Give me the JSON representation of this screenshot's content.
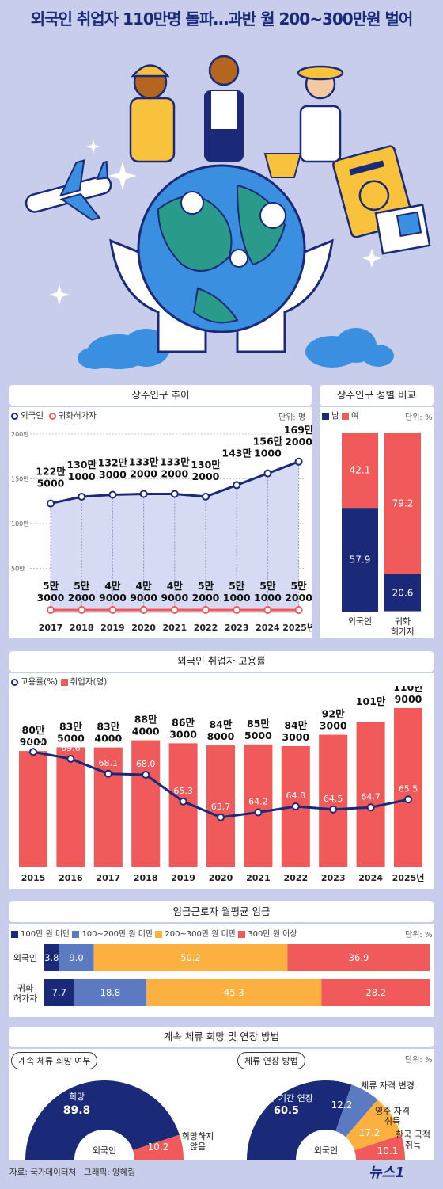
{
  "title": "외국인 취업자 110만명 돌파…과반 월 200~300만원 벌어",
  "footer": {
    "source": "자료: 국가데이터처   그래픽: 양혜림",
    "logo": "뉴스1"
  },
  "colors": {
    "navy": "#1a2a78",
    "red": "#f05a5a",
    "mid_blue": "#5b7ac2",
    "orange": "#fbb040",
    "bg": "#c8cdec"
  },
  "section1": {
    "title": "상주인구 추이",
    "unit": "단위: 명",
    "legend": [
      "외국인",
      "귀화허가자"
    ]
  },
  "section2": {
    "title": "상주인구 성별 비교",
    "unit": "단위: %",
    "legend": [
      "남",
      "여"
    ]
  },
  "section3": {
    "title": "외국인 취업자·고용률",
    "legend": [
      "고용률(%)",
      "취업자(명)"
    ]
  },
  "section4": {
    "title": "임금근로자 월평균 임금",
    "unit": "단위: %",
    "legend": [
      "100만 원 미만",
      "100~200만 원 미만",
      "200~300만 원 미만",
      "300만 원 이상"
    ]
  },
  "section5": {
    "title": "계속 체류 희망 및 연장 방법",
    "unit": "단위: %",
    "left_label": "계속 체류 희망 여부",
    "right_label": "체류 연장 방법"
  },
  "chart_data": [
    {
      "type": "line",
      "title": "상주인구 추이",
      "x": [
        "2017",
        "2018",
        "2019",
        "2020",
        "2021",
        "2022",
        "2023",
        "2024",
        "2025년"
      ],
      "y_ticks": [
        "200만",
        "150만",
        "100만",
        "50만"
      ],
      "ylim": [
        0,
        2000000
      ],
      "series": [
        {
          "name": "외국인",
          "values": [
            1225000,
            1301000,
            1323000,
            1332000,
            1332000,
            1302000,
            1430000,
            1561000,
            1692000
          ],
          "labels": [
            [
              "122만",
              "5000"
            ],
            [
              "130만",
              "1000"
            ],
            [
              "132만",
              "3000"
            ],
            [
              "133만",
              "2000"
            ],
            [
              "133만",
              "2000"
            ],
            [
              "130만",
              "2000"
            ],
            [
              "143만",
              ""
            ],
            [
              "156만",
              "1000"
            ],
            [
              "169만",
              "2000"
            ]
          ]
        },
        {
          "name": "귀화허가자",
          "values": [
            53000,
            52000,
            49000,
            49000,
            49000,
            52000,
            51000,
            51000,
            52000
          ],
          "labels": [
            [
              "5만",
              "3000"
            ],
            [
              "5만",
              "2000"
            ],
            [
              "4만",
              "9000"
            ],
            [
              "4만",
              "9000"
            ],
            [
              "4만",
              "9000"
            ],
            [
              "5만",
              "2000"
            ],
            [
              "5만",
              "1000"
            ],
            [
              "5만",
              "1000"
            ],
            [
              "5만",
              "2000"
            ]
          ]
        }
      ]
    },
    {
      "type": "bar",
      "title": "상주인구 성별 비교",
      "categories": [
        [
          "외국인"
        ],
        [
          "귀화",
          "허가자"
        ]
      ],
      "series": [
        {
          "name": "남",
          "values": [
            57.9,
            20.6
          ]
        },
        {
          "name": "여",
          "values": [
            42.1,
            79.2
          ]
        }
      ]
    },
    {
      "type": "bar",
      "title": "외국인 취업자·고용률",
      "categories": [
        "2015",
        "2016",
        "2017",
        "2018",
        "2019",
        "2020",
        "2021",
        "2022",
        "2023",
        "2024",
        "2025년"
      ],
      "series": [
        {
          "name": "취업자(명)",
          "values": [
            809000,
            835000,
            834000,
            884000,
            863000,
            848000,
            855000,
            843000,
            923000,
            1010000,
            1109000
          ],
          "labels": [
            [
              "80만",
              "9000"
            ],
            [
              "83만",
              "5000"
            ],
            [
              "83만",
              "4000"
            ],
            [
              "88만",
              "4000"
            ],
            [
              "86만",
              "3000"
            ],
            [
              "84만",
              "8000"
            ],
            [
              "85만",
              "5000"
            ],
            [
              "84만",
              "3000"
            ],
            [
              "92만",
              "3000"
            ],
            [
              "101만",
              ""
            ],
            [
              "110만",
              "9000"
            ]
          ]
        },
        {
          "name": "고용률(%)",
          "values": [
            70.3,
            69.6,
            68.1,
            68.0,
            65.3,
            63.7,
            64.2,
            64.8,
            64.5,
            64.7,
            65.5
          ]
        }
      ]
    },
    {
      "type": "bar",
      "title": "임금근로자 월평균 임금",
      "categories": [
        "외국인",
        "귀화허가자"
      ],
      "category_lines": [
        [
          "외국인"
        ],
        [
          "귀화",
          "허가자"
        ]
      ],
      "series": [
        {
          "name": "100만 원 미만",
          "values": [
            3.8,
            7.7
          ]
        },
        {
          "name": "100~200만 원 미만",
          "values": [
            9.0,
            18.8
          ]
        },
        {
          "name": "200~300만 원 미만",
          "values": [
            50.2,
            45.3
          ]
        },
        {
          "name": "300만 원 이상",
          "values": [
            36.9,
            28.2
          ]
        }
      ]
    },
    {
      "type": "pie",
      "title": "계속 체류 희망 여부",
      "center": "외국인",
      "slices": [
        {
          "label": [
            "희망"
          ],
          "value": 89.8
        },
        {
          "label": [
            "희망하지",
            "않음"
          ],
          "value": 10.2
        }
      ]
    },
    {
      "type": "pie",
      "title": "체류 연장 방법",
      "center": "외국인",
      "slices": [
        {
          "label": [
            "체류 기간 연장"
          ],
          "value": 60.5
        },
        {
          "label": [
            "체류 자격 변경"
          ],
          "value": 12.2
        },
        {
          "label": [
            "영주 자격",
            "취득"
          ],
          "value": 17.2
        },
        {
          "label": [
            "한국 국적",
            "취득"
          ],
          "value": 10.1
        }
      ]
    }
  ]
}
